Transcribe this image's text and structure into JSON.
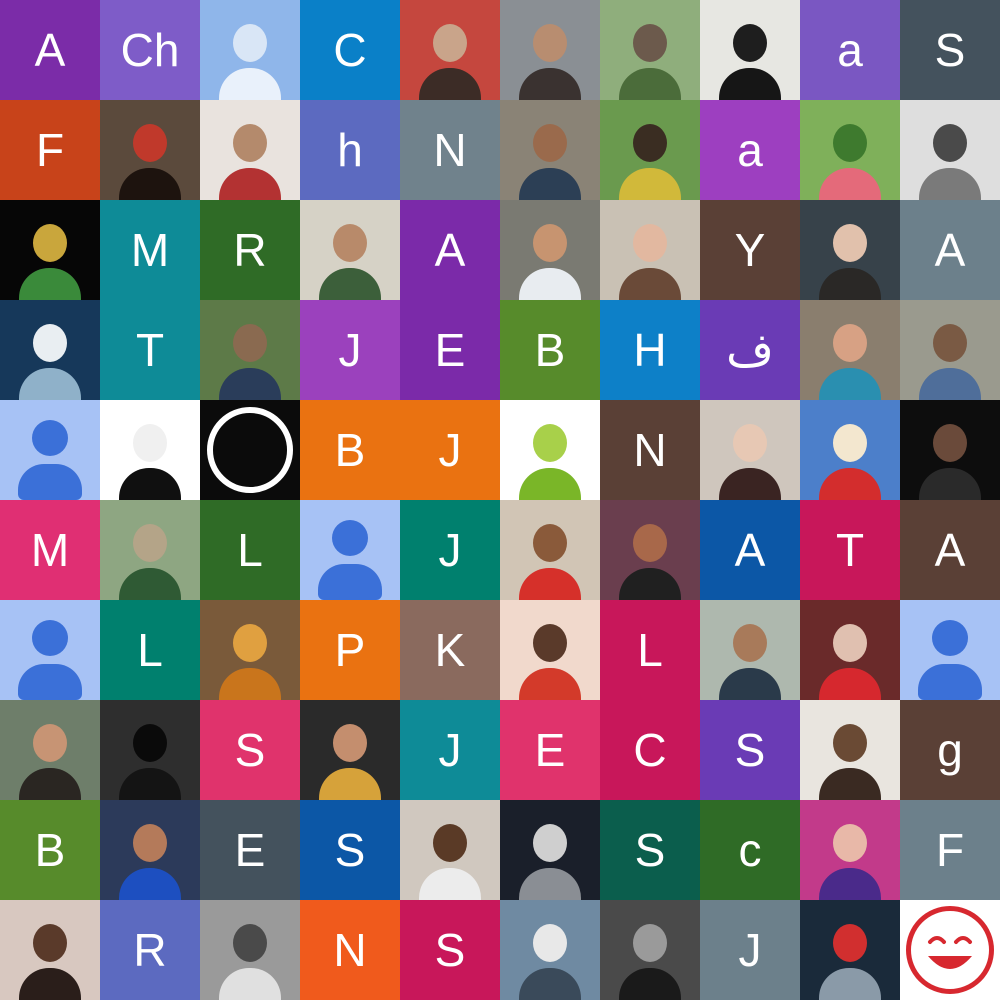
{
  "grid": {
    "rows": [
      [
        {
          "kind": "letter",
          "text": "A",
          "bg": "#7b2ca8"
        },
        {
          "kind": "letter",
          "text": "Ch",
          "bg": "#7e5cc8"
        },
        {
          "kind": "photo",
          "bg": "#8fb6ea",
          "fg": "#e9f1fb",
          "acc": "#d9e6f6"
        },
        {
          "kind": "letter",
          "text": "C",
          "bg": "#0a80c8"
        },
        {
          "kind": "photo",
          "bg": "#c5473e",
          "fg": "#3c2c26",
          "acc": "#c9a48a"
        },
        {
          "kind": "photo",
          "bg": "#8a8f94",
          "fg": "#3a3230",
          "acc": "#b88d70"
        },
        {
          "kind": "photo",
          "bg": "#8fae7c",
          "fg": "#4b6c3a",
          "acc": "#6c5a4c"
        },
        {
          "kind": "photo",
          "bg": "#e7e7e2",
          "fg": "#161616",
          "acc": "#1e1e1e"
        },
        {
          "kind": "letter",
          "text": "a",
          "bg": "#7a57c2"
        },
        {
          "kind": "letter",
          "text": "S",
          "bg": "#44525d"
        }
      ],
      [
        {
          "kind": "letter",
          "text": "F",
          "bg": "#c8431a"
        },
        {
          "kind": "photo",
          "bg": "#5b4a3c",
          "fg": "#1d130e",
          "acc": "#c0392b"
        },
        {
          "kind": "photo",
          "bg": "#e9e3de",
          "fg": "#b33232",
          "acc": "#b48a6c"
        },
        {
          "kind": "letter",
          "text": "h",
          "bg": "#5c6ac0"
        },
        {
          "kind": "letter",
          "text": "N",
          "bg": "#70828c"
        },
        {
          "kind": "photo",
          "bg": "#8a8376",
          "fg": "#2c3f55",
          "acc": "#9a6a4c"
        },
        {
          "kind": "photo",
          "bg": "#6a9a4e",
          "fg": "#d1b93a",
          "acc": "#3a2d22"
        },
        {
          "kind": "letter",
          "text": "a",
          "bg": "#9d3fc0"
        },
        {
          "kind": "photo",
          "bg": "#7fb05a",
          "fg": "#e46a7a",
          "acc": "#3e7a2e"
        },
        {
          "kind": "photo",
          "bg": "#dedede",
          "fg": "#7a7a7a",
          "acc": "#4a4a4a"
        }
      ],
      [
        {
          "kind": "photo",
          "bg": "#060606",
          "fg": "#3a8a3a",
          "acc": "#c9a63c"
        },
        {
          "kind": "letter",
          "text": "M",
          "bg": "#0e8b97"
        },
        {
          "kind": "letter",
          "text": "R",
          "bg": "#2f6b26"
        },
        {
          "kind": "photo",
          "bg": "#d6d2c6",
          "fg": "#3c5f3a",
          "acc": "#b88a6a"
        },
        {
          "kind": "letter",
          "text": "A",
          "bg": "#7b2aa9"
        },
        {
          "kind": "photo",
          "bg": "#7a7a72",
          "fg": "#e8ecf0",
          "acc": "#c79470"
        },
        {
          "kind": "photo",
          "bg": "#c9c1b4",
          "fg": "#6a4a38",
          "acc": "#e2b8a0"
        },
        {
          "kind": "letter",
          "text": "Y",
          "bg": "#5a4036"
        },
        {
          "kind": "photo",
          "bg": "#37424a",
          "fg": "#2a2826",
          "acc": "#e1c1ac"
        },
        {
          "kind": "letter",
          "text": "A",
          "bg": "#6c808b"
        }
      ],
      [
        {
          "kind": "photo",
          "bg": "#16385a",
          "fg": "#8fb1c9",
          "acc": "#e9eef2"
        },
        {
          "kind": "letter",
          "text": "T",
          "bg": "#0e8b97"
        },
        {
          "kind": "photo",
          "bg": "#5d7a48",
          "fg": "#2a3d5a",
          "acc": "#8a6a50"
        },
        {
          "kind": "letter",
          "text": "J",
          "bg": "#9b41bd"
        },
        {
          "kind": "letter",
          "text": "E",
          "bg": "#7b2aa9"
        },
        {
          "kind": "letter",
          "text": "B",
          "bg": "#578b2b"
        },
        {
          "kind": "letter",
          "text": "H",
          "bg": "#0d80c8"
        },
        {
          "kind": "letter",
          "text": "ف",
          "bg": "#6a3bb5"
        },
        {
          "kind": "photo",
          "bg": "#8a7e6e",
          "fg": "#2a8fb0",
          "acc": "#d7a184"
        },
        {
          "kind": "photo",
          "bg": "#9a9a8e",
          "fg": "#4f6e9a",
          "acc": "#7a5a44"
        }
      ],
      [
        {
          "kind": "avatar"
        },
        {
          "kind": "photo",
          "bg": "#ffffff",
          "fg": "#101010",
          "acc": "#f0f0f0"
        },
        {
          "kind": "emblem",
          "bg": "#0b0b0b"
        },
        {
          "kind": "letter",
          "text": "B",
          "bg": "#ea7211"
        },
        {
          "kind": "letter",
          "text": "J",
          "bg": "#ea7211"
        },
        {
          "kind": "photo",
          "bg": "#ffffff",
          "fg": "#7ab628",
          "acc": "#a8d04a"
        },
        {
          "kind": "letter",
          "text": "N",
          "bg": "#5a4036"
        },
        {
          "kind": "photo",
          "bg": "#cfc6bd",
          "fg": "#3a2422",
          "acc": "#e7c8b4"
        },
        {
          "kind": "photo",
          "bg": "#4c7fca",
          "fg": "#d32d2d",
          "acc": "#f3e7cf"
        },
        {
          "kind": "photo",
          "bg": "#0d0d0d",
          "fg": "#2a2a2a",
          "acc": "#6a4a3a"
        }
      ],
      [
        {
          "kind": "letter",
          "text": "M",
          "bg": "#e02f73"
        },
        {
          "kind": "photo",
          "bg": "#8ea682",
          "fg": "#2f5a34",
          "acc": "#b4a488"
        },
        {
          "kind": "letter",
          "text": "L",
          "bg": "#2f6b26"
        },
        {
          "kind": "avatar"
        },
        {
          "kind": "letter",
          "text": "J",
          "bg": "#00806e"
        },
        {
          "kind": "photo",
          "bg": "#d1c5b5",
          "fg": "#d6302a",
          "acc": "#8a5a3a"
        },
        {
          "kind": "photo",
          "bg": "#6a3e4e",
          "fg": "#202020",
          "acc": "#a8684a"
        },
        {
          "kind": "letter",
          "text": "A",
          "bg": "#0c57a6"
        },
        {
          "kind": "letter",
          "text": "T",
          "bg": "#c8175a"
        },
        {
          "kind": "letter",
          "text": "A",
          "bg": "#5a4036"
        }
      ],
      [
        {
          "kind": "avatar"
        },
        {
          "kind": "letter",
          "text": "L",
          "bg": "#00806e"
        },
        {
          "kind": "photo",
          "bg": "#7a5a3a",
          "fg": "#c9751c",
          "acc": "#e0a040"
        },
        {
          "kind": "letter",
          "text": "P",
          "bg": "#ea7211"
        },
        {
          "kind": "letter",
          "text": "K",
          "bg": "#8a6a5e"
        },
        {
          "kind": "photo",
          "bg": "#f1d9cc",
          "fg": "#d33a2a",
          "acc": "#5a3a2a"
        },
        {
          "kind": "letter",
          "text": "L",
          "bg": "#c8175a"
        },
        {
          "kind": "photo",
          "bg": "#aeb8ae",
          "fg": "#2a3a4a",
          "acc": "#a87a5a"
        },
        {
          "kind": "photo",
          "bg": "#6a2a2a",
          "fg": "#d6282e",
          "acc": "#e0c0b0"
        },
        {
          "kind": "avatar"
        }
      ],
      [
        {
          "kind": "photo",
          "bg": "#6e7e6a",
          "fg": "#2a2622",
          "acc": "#c79474"
        },
        {
          "kind": "photo",
          "bg": "#2e2e2e",
          "fg": "#141414",
          "acc": "#0a0a0a"
        },
        {
          "kind": "letter",
          "text": "S",
          "bg": "#e0336c"
        },
        {
          "kind": "photo",
          "bg": "#2a2a2a",
          "fg": "#d6a23a",
          "acc": "#c48e6e"
        },
        {
          "kind": "letter",
          "text": "J",
          "bg": "#0e8b97"
        },
        {
          "kind": "letter",
          "text": "E",
          "bg": "#e0336c"
        },
        {
          "kind": "letter",
          "text": "C",
          "bg": "#c8175a"
        },
        {
          "kind": "letter",
          "text": "S",
          "bg": "#6a3bb5"
        },
        {
          "kind": "photo",
          "bg": "#e9e5df",
          "fg": "#3a2a22",
          "acc": "#6a4a34"
        },
        {
          "kind": "letter",
          "text": "g",
          "bg": "#5a4036"
        }
      ],
      [
        {
          "kind": "letter",
          "text": "B",
          "bg": "#578b2b"
        },
        {
          "kind": "photo",
          "bg": "#2c3a5a",
          "fg": "#1d4fc0",
          "acc": "#b47a5a"
        },
        {
          "kind": "letter",
          "text": "E",
          "bg": "#44525d"
        },
        {
          "kind": "letter",
          "text": "S",
          "bg": "#0c57a6"
        },
        {
          "kind": "photo",
          "bg": "#d0c8bf",
          "fg": "#ececec",
          "acc": "#5a3a26"
        },
        {
          "kind": "photo",
          "bg": "#1a1f2a",
          "fg": "#8a8e94",
          "acc": "#cfcfcf"
        },
        {
          "kind": "letter",
          "text": "S",
          "bg": "#0b5e4d"
        },
        {
          "kind": "letter",
          "text": "c",
          "bg": "#2f6b26"
        },
        {
          "kind": "photo",
          "bg": "#c23a8a",
          "fg": "#4a2a8a",
          "acc": "#e8b8a8"
        },
        {
          "kind": "letter",
          "text": "F",
          "bg": "#6c808b"
        }
      ],
      [
        {
          "kind": "photo",
          "bg": "#d8c8c0",
          "fg": "#2a1e1a",
          "acc": "#5a3a2a"
        },
        {
          "kind": "letter",
          "text": "R",
          "bg": "#5c6ac0"
        },
        {
          "kind": "photo",
          "bg": "#9a9a9a",
          "fg": "#e0e0e0",
          "acc": "#4a4a4a"
        },
        {
          "kind": "letter",
          "text": "N",
          "bg": "#f05a1c"
        },
        {
          "kind": "letter",
          "text": "S",
          "bg": "#c8175a"
        },
        {
          "kind": "photo",
          "bg": "#6f8aa2",
          "fg": "#3a4a5a",
          "acc": "#e8e8e8"
        },
        {
          "kind": "photo",
          "bg": "#4a4a4a",
          "fg": "#1a1a1a",
          "acc": "#9a9a9a"
        },
        {
          "kind": "letter",
          "text": "J",
          "bg": "#6c808b"
        },
        {
          "kind": "photo",
          "bg": "#1a2a3a",
          "fg": "#8a9aa8",
          "acc": "#d12f2f"
        },
        {
          "kind": "smile",
          "bg": "#ffffff",
          "ring": "#d7282f"
        }
      ]
    ]
  }
}
